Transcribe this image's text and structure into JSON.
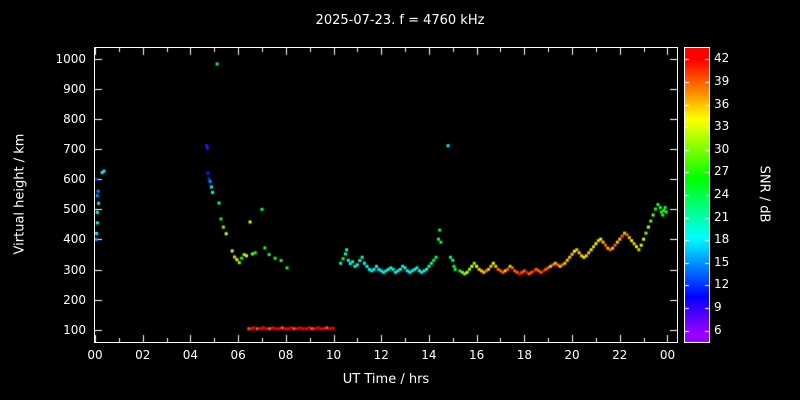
{
  "title": "2025-07-23. f = 4760 kHz",
  "chart_data": {
    "type": "scatter",
    "title": "2025-07-23. f = 4760 kHz",
    "xlabel": "UT Time / hrs",
    "ylabel": "Virtual height / km",
    "x_tick_labels": [
      "00",
      "02",
      "04",
      "06",
      "08",
      "10",
      "12",
      "14",
      "16",
      "18",
      "20",
      "22",
      "00"
    ],
    "x_tick_hours": [
      0,
      2,
      4,
      6,
      8,
      10,
      12,
      14,
      16,
      18,
      20,
      22,
      24
    ],
    "y_ticks": [
      100,
      200,
      300,
      400,
      500,
      600,
      700,
      800,
      900,
      1000
    ],
    "x_range": [
      0,
      24.4
    ],
    "y_range": [
      60,
      1035
    ],
    "grid": false,
    "background": "#000000",
    "frame_color": "#ffffff",
    "colorbar": {
      "label": "SNR / dB",
      "ticks": [
        42,
        39,
        36,
        33,
        30,
        27,
        24,
        21,
        18,
        15,
        12,
        9,
        6
      ],
      "range": [
        4.5,
        43.5
      ],
      "scale": {
        "type": "rainbow",
        "snr_min": 6,
        "snr_max": 42,
        "hue_at_min_deg": 275,
        "hue_at_max_deg": 0,
        "color_at_min": "#8000ff",
        "color_at_max": "#ff0000"
      }
    },
    "points_format": [
      "ut_hours",
      "virtual_height_km",
      "snr_db"
    ],
    "points": [
      [
        0.05,
        400,
        15
      ],
      [
        0.07,
        420,
        18
      ],
      [
        0.1,
        455,
        18
      ],
      [
        0.1,
        490,
        18
      ],
      [
        0.15,
        520,
        18
      ],
      [
        0.1,
        545,
        15
      ],
      [
        0.13,
        560,
        15
      ],
      [
        0.05,
        600,
        12
      ],
      [
        0.3,
        622,
        18
      ],
      [
        0.38,
        627,
        18
      ],
      [
        4.68,
        712,
        9
      ],
      [
        4.71,
        704,
        12
      ],
      [
        4.73,
        620,
        12
      ],
      [
        4.78,
        601,
        12
      ],
      [
        4.83,
        592,
        15
      ],
      [
        4.88,
        574,
        18
      ],
      [
        4.93,
        556,
        18
      ],
      [
        5.12,
        982,
        24
      ],
      [
        5.2,
        521,
        21
      ],
      [
        5.28,
        468,
        27
      ],
      [
        5.38,
        441,
        30
      ],
      [
        5.5,
        419,
        33
      ],
      [
        5.75,
        362,
        33
      ],
      [
        5.85,
        342,
        36
      ],
      [
        5.95,
        333,
        33
      ],
      [
        6.05,
        323,
        30
      ],
      [
        6.15,
        338,
        27
      ],
      [
        6.25,
        350,
        30
      ],
      [
        6.35,
        346,
        33
      ],
      [
        6.5,
        458,
        33
      ],
      [
        6.6,
        352,
        30
      ],
      [
        6.72,
        356,
        27
      ],
      [
        7.0,
        500,
        24
      ],
      [
        7.12,
        372,
        27
      ],
      [
        7.3,
        350,
        24
      ],
      [
        7.55,
        338,
        27
      ],
      [
        7.8,
        330,
        24
      ],
      [
        8.05,
        306,
        27
      ],
      [
        6.45,
        104,
        39
      ],
      [
        6.55,
        104,
        42
      ],
      [
        6.65,
        107,
        42
      ],
      [
        6.8,
        104,
        39
      ],
      [
        6.95,
        104,
        42
      ],
      [
        7.05,
        107,
        42
      ],
      [
        7.18,
        104,
        42
      ],
      [
        7.32,
        104,
        39
      ],
      [
        7.45,
        107,
        42
      ],
      [
        7.58,
        104,
        42
      ],
      [
        7.72,
        104,
        42
      ],
      [
        7.85,
        107,
        39
      ],
      [
        7.98,
        104,
        42
      ],
      [
        8.1,
        104,
        42
      ],
      [
        8.22,
        107,
        42
      ],
      [
        8.35,
        104,
        39
      ],
      [
        8.48,
        104,
        42
      ],
      [
        8.6,
        107,
        42
      ],
      [
        8.72,
        104,
        42
      ],
      [
        8.85,
        104,
        42
      ],
      [
        8.98,
        107,
        42
      ],
      [
        9.1,
        104,
        39
      ],
      [
        9.22,
        104,
        42
      ],
      [
        9.35,
        107,
        42
      ],
      [
        9.48,
        104,
        42
      ],
      [
        9.6,
        104,
        42
      ],
      [
        9.72,
        107,
        39
      ],
      [
        9.85,
        104,
        42
      ],
      [
        9.98,
        106,
        42
      ],
      [
        10.3,
        321,
        21
      ],
      [
        10.4,
        336,
        24
      ],
      [
        10.5,
        352,
        21
      ],
      [
        10.55,
        366,
        21
      ],
      [
        10.62,
        331,
        21
      ],
      [
        10.7,
        320,
        18
      ],
      [
        10.8,
        326,
        21
      ],
      [
        10.9,
        311,
        21
      ],
      [
        11.0,
        316,
        18
      ],
      [
        11.1,
        330,
        21
      ],
      [
        11.2,
        341,
        21
      ],
      [
        11.3,
        321,
        18
      ],
      [
        11.4,
        311,
        18
      ],
      [
        11.5,
        301,
        18
      ],
      [
        11.6,
        296,
        21
      ],
      [
        11.7,
        301,
        18
      ],
      [
        11.8,
        311,
        21
      ],
      [
        11.9,
        301,
        18
      ],
      [
        12.0,
        296,
        18
      ],
      [
        12.1,
        291,
        18
      ],
      [
        12.2,
        296,
        21
      ],
      [
        12.3,
        301,
        18
      ],
      [
        12.4,
        306,
        21
      ],
      [
        12.5,
        301,
        18
      ],
      [
        12.6,
        291,
        18
      ],
      [
        12.7,
        296,
        18
      ],
      [
        12.8,
        301,
        21
      ],
      [
        12.9,
        311,
        18
      ],
      [
        13.0,
        306,
        21
      ],
      [
        13.1,
        296,
        18
      ],
      [
        13.2,
        291,
        18
      ],
      [
        13.3,
        296,
        21
      ],
      [
        13.4,
        301,
        18
      ],
      [
        13.5,
        306,
        18
      ],
      [
        13.6,
        296,
        21
      ],
      [
        13.7,
        291,
        18
      ],
      [
        13.8,
        296,
        18
      ],
      [
        13.9,
        301,
        21
      ],
      [
        14.0,
        311,
        21
      ],
      [
        14.1,
        321,
        21
      ],
      [
        14.2,
        331,
        24
      ],
      [
        14.3,
        341,
        24
      ],
      [
        14.4,
        401,
        24
      ],
      [
        14.45,
        431,
        27
      ],
      [
        14.5,
        391,
        24
      ],
      [
        14.8,
        711,
        18
      ],
      [
        14.9,
        341,
        24
      ],
      [
        15.0,
        331,
        21
      ],
      [
        15.05,
        311,
        24
      ],
      [
        15.1,
        301,
        24
      ],
      [
        15.3,
        296,
        27
      ],
      [
        15.4,
        291,
        30
      ],
      [
        15.5,
        286,
        30
      ],
      [
        15.6,
        291,
        33
      ],
      [
        15.7,
        301,
        30
      ],
      [
        15.8,
        311,
        33
      ],
      [
        15.9,
        321,
        30
      ],
      [
        16.0,
        311,
        33
      ],
      [
        16.1,
        301,
        36
      ],
      [
        16.2,
        296,
        36
      ],
      [
        16.3,
        291,
        36
      ],
      [
        16.4,
        296,
        39
      ],
      [
        16.5,
        301,
        36
      ],
      [
        16.6,
        311,
        36
      ],
      [
        16.7,
        321,
        33
      ],
      [
        16.8,
        311,
        36
      ],
      [
        16.9,
        301,
        39
      ],
      [
        17.0,
        296,
        39
      ],
      [
        17.1,
        291,
        39
      ],
      [
        17.2,
        296,
        36
      ],
      [
        17.3,
        301,
        39
      ],
      [
        17.4,
        311,
        36
      ],
      [
        17.5,
        306,
        39
      ],
      [
        17.6,
        296,
        39
      ],
      [
        17.7,
        291,
        39
      ],
      [
        17.8,
        286,
        42
      ],
      [
        17.9,
        291,
        39
      ],
      [
        18.0,
        296,
        39
      ],
      [
        18.1,
        291,
        42
      ],
      [
        18.2,
        286,
        39
      ],
      [
        18.3,
        291,
        39
      ],
      [
        18.4,
        296,
        42
      ],
      [
        18.5,
        301,
        39
      ],
      [
        18.6,
        296,
        39
      ],
      [
        18.7,
        291,
        39
      ],
      [
        18.8,
        296,
        42
      ],
      [
        18.9,
        301,
        39
      ],
      [
        19.0,
        306,
        39
      ],
      [
        19.1,
        311,
        36
      ],
      [
        19.2,
        316,
        39
      ],
      [
        19.3,
        321,
        36
      ],
      [
        19.4,
        316,
        39
      ],
      [
        19.5,
        311,
        36
      ],
      [
        19.6,
        316,
        39
      ],
      [
        19.7,
        321,
        36
      ],
      [
        19.8,
        331,
        36
      ],
      [
        19.9,
        341,
        36
      ],
      [
        20.0,
        351,
        36
      ],
      [
        20.1,
        361,
        33
      ],
      [
        20.2,
        366,
        36
      ],
      [
        20.3,
        356,
        36
      ],
      [
        20.4,
        346,
        36
      ],
      [
        20.5,
        341,
        33
      ],
      [
        20.6,
        346,
        36
      ],
      [
        20.7,
        356,
        36
      ],
      [
        20.8,
        366,
        33
      ],
      [
        20.9,
        376,
        36
      ],
      [
        21.0,
        386,
        33
      ],
      [
        21.1,
        396,
        36
      ],
      [
        21.2,
        401,
        33
      ],
      [
        21.3,
        391,
        36
      ],
      [
        21.4,
        381,
        39
      ],
      [
        21.5,
        371,
        36
      ],
      [
        21.6,
        366,
        39
      ],
      [
        21.7,
        371,
        36
      ],
      [
        21.8,
        381,
        39
      ],
      [
        21.9,
        391,
        36
      ],
      [
        22.0,
        401,
        36
      ],
      [
        22.1,
        411,
        39
      ],
      [
        22.2,
        421,
        36
      ],
      [
        22.3,
        416,
        39
      ],
      [
        22.4,
        406,
        36
      ],
      [
        22.5,
        396,
        33
      ],
      [
        22.6,
        386,
        36
      ],
      [
        22.7,
        376,
        33
      ],
      [
        22.8,
        366,
        36
      ],
      [
        22.9,
        381,
        33
      ],
      [
        23.0,
        401,
        33
      ],
      [
        23.1,
        421,
        30
      ],
      [
        23.2,
        441,
        33
      ],
      [
        23.3,
        461,
        30
      ],
      [
        23.4,
        481,
        30
      ],
      [
        23.5,
        501,
        27
      ],
      [
        23.6,
        516,
        27
      ],
      [
        23.7,
        506,
        24
      ],
      [
        23.75,
        491,
        27
      ],
      [
        23.8,
        481,
        24
      ],
      [
        23.85,
        496,
        27
      ],
      [
        23.9,
        506,
        24
      ],
      [
        23.95,
        491,
        27
      ]
    ]
  }
}
